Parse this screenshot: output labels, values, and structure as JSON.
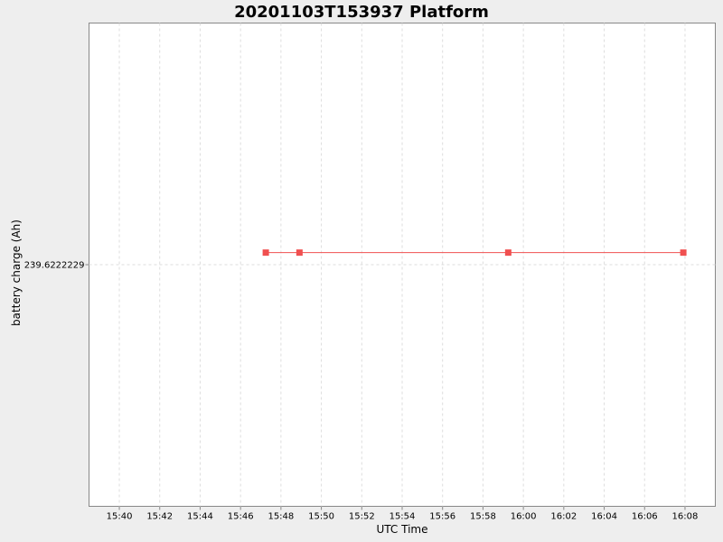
{
  "chart_data": {
    "type": "line",
    "title": "20201103T153937 Platform",
    "xlabel": "UTC Time",
    "ylabel": "battery charge (Ah)",
    "x_ticks": [
      "15:40",
      "15:42",
      "15:44",
      "15:46",
      "15:48",
      "15:50",
      "15:52",
      "15:54",
      "15:56",
      "15:58",
      "16:00",
      "16:02",
      "16:04",
      "16:06",
      "16:08"
    ],
    "y_ticks": [
      "239.6222229"
    ],
    "xlim": [
      "15:38:30",
      "16:09:30"
    ],
    "ylim": [
      239.6222209,
      239.6222249
    ],
    "grid": true,
    "series": [
      {
        "color": "#f05050",
        "x": [
          "15:47:15",
          "15:48:55",
          "15:59:15",
          "16:07:55"
        ],
        "y": [
          239.622223,
          239.622223,
          239.622223,
          239.622223
        ]
      }
    ]
  }
}
